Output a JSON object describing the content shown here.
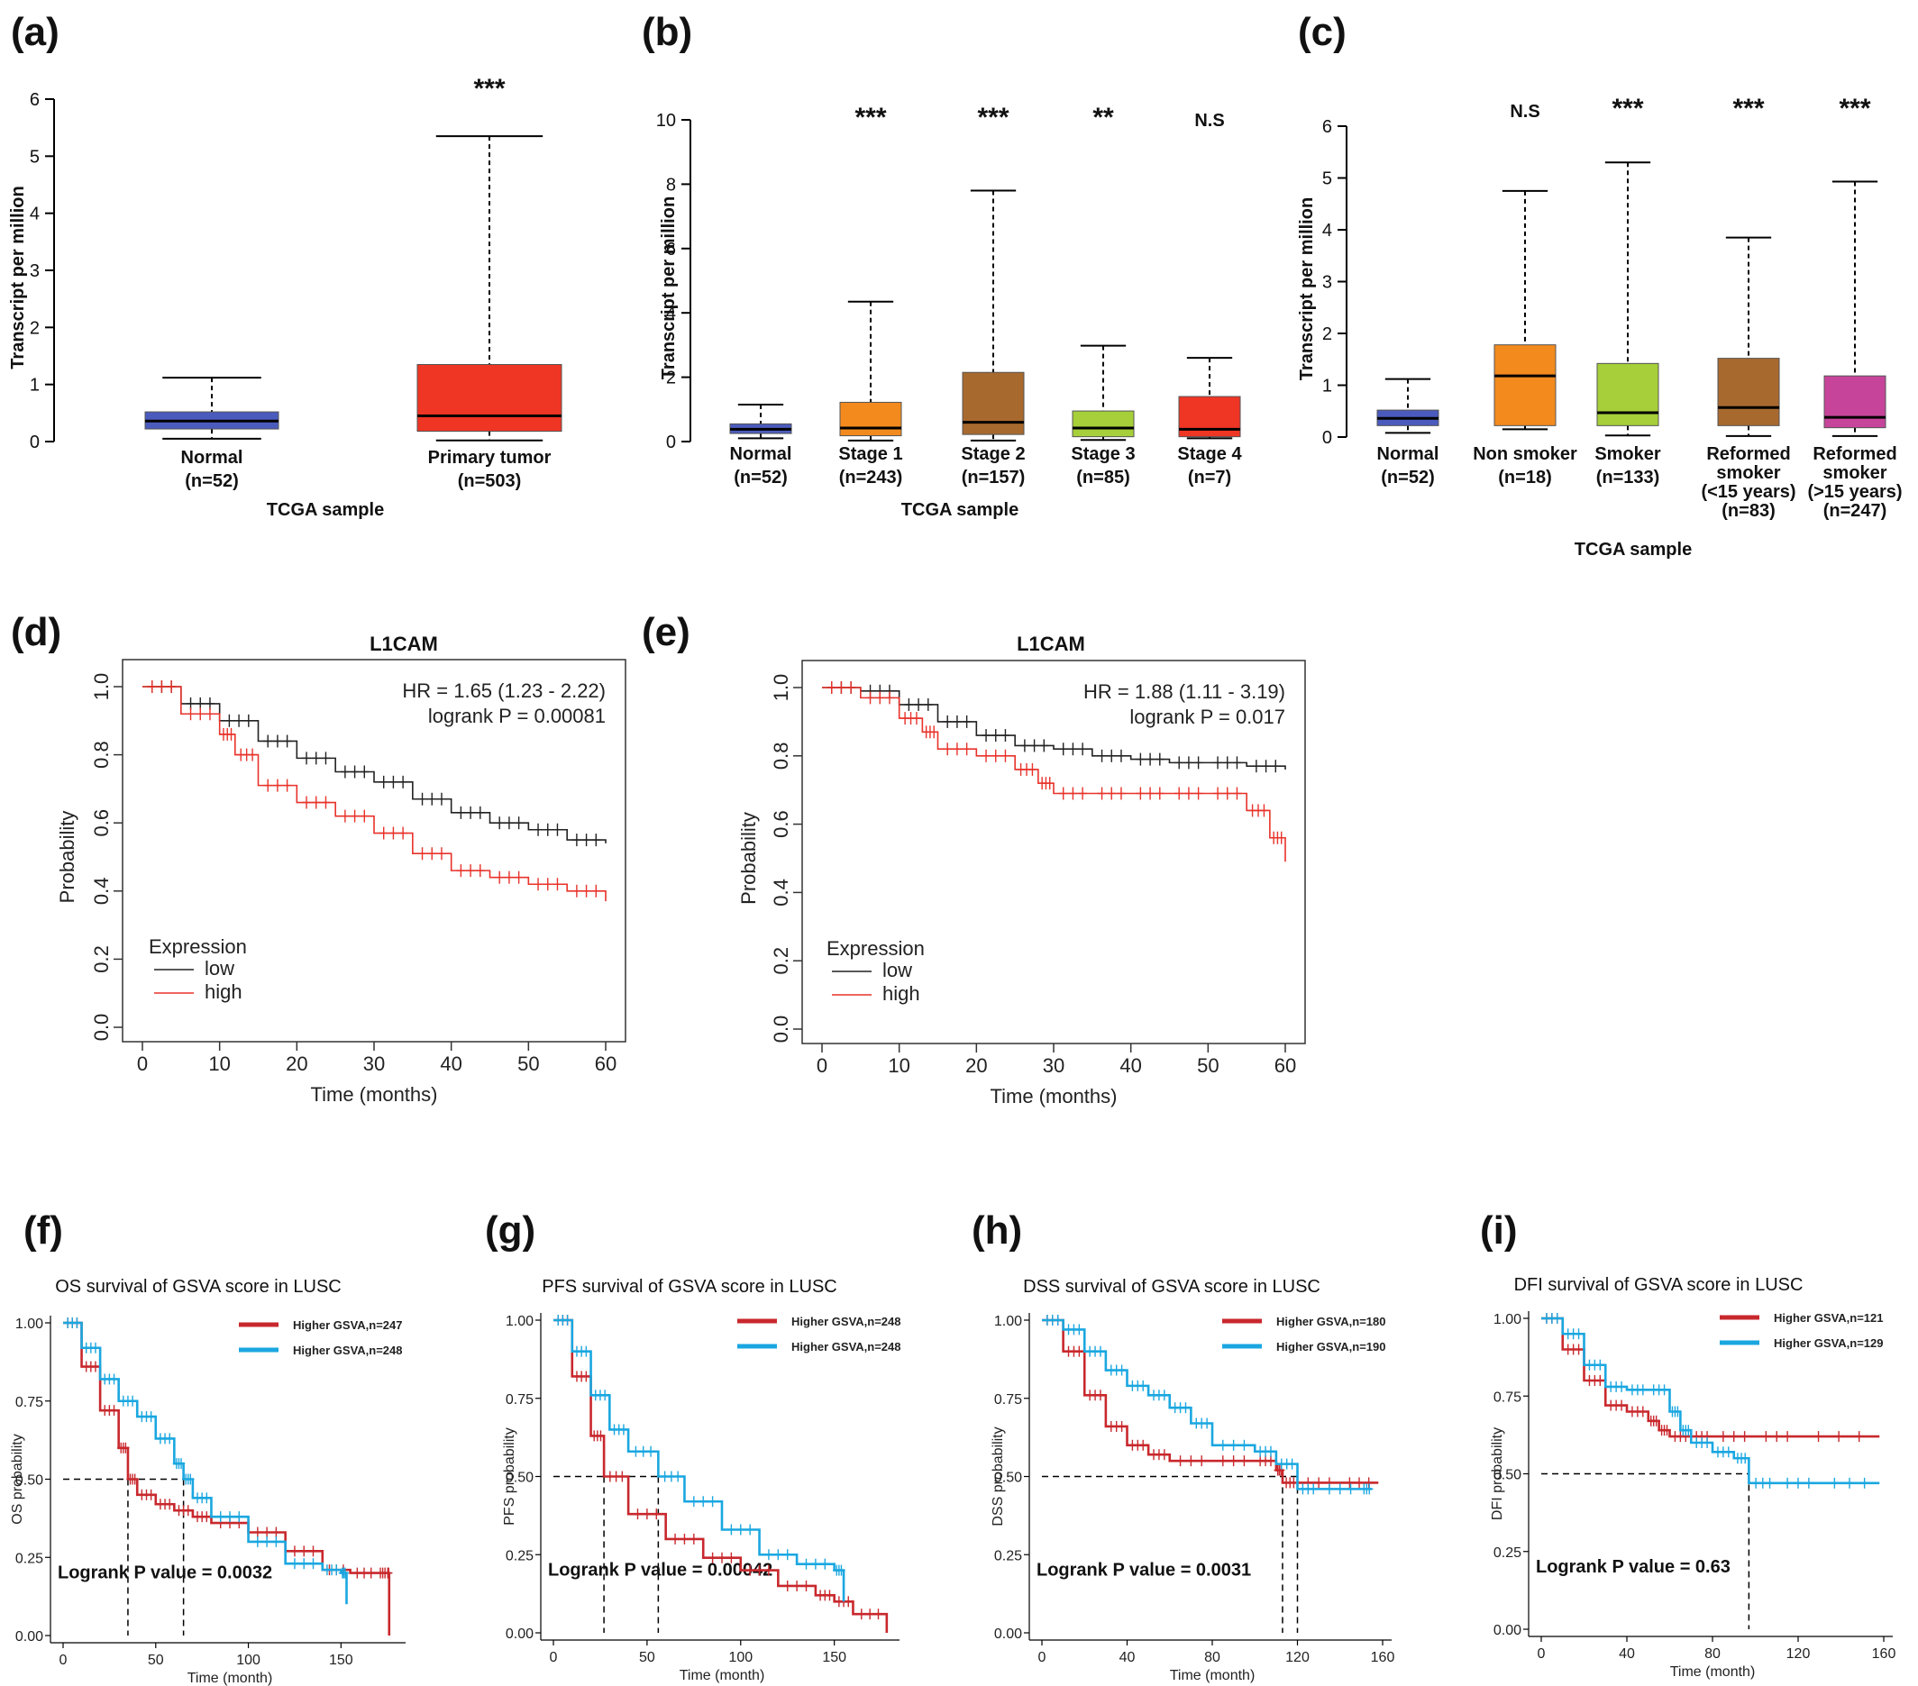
{
  "chart_data": [
    {
      "panel": "(a)",
      "type": "box",
      "ylabel": "Transcript per million",
      "xlabel": "TCGA sample",
      "ylim": [
        0,
        6
      ],
      "yticks": [
        0,
        1,
        2,
        3,
        4,
        5,
        6
      ],
      "grid": false,
      "boxes": [
        {
          "label": "Normal",
          "n": "(n=52)",
          "color": "#4b5bbd",
          "sig": "",
          "min": 0.05,
          "q1": 0.22,
          "median": 0.36,
          "q3": 0.52,
          "max": 1.12
        },
        {
          "label": "Primary tumor",
          "n": "(n=503)",
          "color": "#ef3524",
          "sig": "***",
          "min": 0.02,
          "q1": 0.18,
          "median": 0.45,
          "q3": 1.35,
          "max": 5.35
        }
      ]
    },
    {
      "panel": "(b)",
      "type": "box",
      "ylabel": "Transcript per million",
      "xlabel": "TCGA sample",
      "ylim": [
        0,
        10
      ],
      "yticks": [
        0,
        2,
        4,
        6,
        8,
        10
      ],
      "grid": false,
      "boxes": [
        {
          "label": "Normal",
          "n": "(n=52)",
          "color": "#4b5bbd",
          "sig": "",
          "min": 0.1,
          "q1": 0.25,
          "median": 0.38,
          "q3": 0.55,
          "max": 1.15
        },
        {
          "label": "Stage 1",
          "n": "(n=243)",
          "color": "#f28a1e",
          "sig": "***",
          "min": 0.03,
          "q1": 0.18,
          "median": 0.42,
          "q3": 1.22,
          "max": 4.35
        },
        {
          "label": "Stage 2",
          "n": "(n=157)",
          "color": "#a8692f",
          "sig": "***",
          "min": 0.03,
          "q1": 0.22,
          "median": 0.6,
          "q3": 2.15,
          "max": 7.8
        },
        {
          "label": "Stage 3",
          "n": "(n=85)",
          "color": "#a6cf3a",
          "sig": "**",
          "min": 0.05,
          "q1": 0.15,
          "median": 0.42,
          "q3": 0.95,
          "max": 2.98
        },
        {
          "label": "Stage 4",
          "n": "(n=7)",
          "color": "#ef3524",
          "sig": "N.S",
          "min": 0.1,
          "q1": 0.15,
          "median": 0.38,
          "q3": 1.4,
          "max": 2.6
        }
      ]
    },
    {
      "panel": "(c)",
      "type": "box",
      "ylabel": "Transcript per million",
      "xlabel": "TCGA sample",
      "ylim": [
        0,
        6
      ],
      "yticks": [
        0,
        1,
        2,
        3,
        4,
        5,
        6
      ],
      "grid": false,
      "boxes": [
        {
          "label": "Normal",
          "n": "(n=52)",
          "color": "#4b5bbd",
          "sig": "",
          "min": 0.08,
          "q1": 0.22,
          "median": 0.36,
          "q3": 0.52,
          "max": 1.12
        },
        {
          "label": "Non smoker",
          "n": "(n=18)",
          "color": "#f28a1e",
          "sig": "N.S",
          "min": 0.15,
          "q1": 0.22,
          "median": 1.18,
          "q3": 1.78,
          "max": 4.75
        },
        {
          "label": "Smoker",
          "n": "(n=133)",
          "color": "#a6cf3a",
          "sig": "***",
          "min": 0.03,
          "q1": 0.22,
          "median": 0.47,
          "q3": 1.42,
          "max": 5.3
        },
        {
          "label": "Reformed smoker (<15 years)",
          "n": "(n=83)",
          "color": "#a8692f",
          "sig": "***",
          "min": 0.02,
          "q1": 0.22,
          "median": 0.57,
          "q3": 1.52,
          "max": 3.85
        },
        {
          "label": "Reformed smoker (>15 years)",
          "n": "(n=247)",
          "color": "#c6459a",
          "sig": "***",
          "min": 0.02,
          "q1": 0.18,
          "median": 0.38,
          "q3": 1.18,
          "max": 4.93
        }
      ]
    },
    {
      "panel": "(d)",
      "type": "line",
      "title": "L1CAM",
      "xlabel": "Time (months)",
      "ylabel": "Probability",
      "xlim": [
        0,
        60
      ],
      "ylim": [
        0,
        1
      ],
      "xticks": [
        0,
        10,
        20,
        30,
        40,
        50,
        60
      ],
      "yticks": [
        "0.0",
        "0.2",
        "0.4",
        "0.6",
        "0.8",
        "1.0"
      ],
      "hr_text": "HR = 1.65 (1.23 - 2.22)",
      "p_text": "logrank P = 0.00081",
      "legend_title": "Expression",
      "series": [
        {
          "name": "low",
          "color": "#222222",
          "x": [
            0,
            5,
            10,
            15,
            20,
            25,
            30,
            35,
            40,
            45,
            50,
            55,
            60
          ],
          "y": [
            1.0,
            0.95,
            0.9,
            0.84,
            0.79,
            0.75,
            0.72,
            0.67,
            0.63,
            0.6,
            0.58,
            0.55,
            0.54
          ]
        },
        {
          "name": "high",
          "color": "#e8322a",
          "x": [
            0,
            5,
            10,
            12,
            15,
            20,
            25,
            30,
            35,
            40,
            45,
            50,
            55,
            60
          ],
          "y": [
            1.0,
            0.92,
            0.86,
            0.8,
            0.71,
            0.66,
            0.62,
            0.57,
            0.51,
            0.46,
            0.44,
            0.42,
            0.4,
            0.37
          ]
        }
      ]
    },
    {
      "panel": "(e)",
      "type": "line",
      "title": "L1CAM",
      "xlabel": "Time (months)",
      "ylabel": "Probability",
      "xlim": [
        0,
        60
      ],
      "ylim": [
        0,
        1
      ],
      "xticks": [
        0,
        10,
        20,
        30,
        40,
        50,
        60
      ],
      "yticks": [
        "0.0",
        "0.2",
        "0.4",
        "0.6",
        "0.8",
        "1.0"
      ],
      "hr_text": "HR = 1.88 (1.11 - 3.19)",
      "p_text": "logrank P = 0.017",
      "legend_title": "Expression",
      "series": [
        {
          "name": "low",
          "color": "#222222",
          "x": [
            0,
            5,
            10,
            15,
            20,
            25,
            30,
            35,
            40,
            45,
            50,
            55,
            60
          ],
          "y": [
            1.0,
            0.99,
            0.95,
            0.9,
            0.86,
            0.83,
            0.82,
            0.8,
            0.79,
            0.78,
            0.78,
            0.77,
            0.76
          ]
        },
        {
          "name": "high",
          "color": "#e8322a",
          "x": [
            0,
            5,
            10,
            13,
            15,
            20,
            25,
            28,
            30,
            35,
            40,
            45,
            50,
            55,
            58,
            60
          ],
          "y": [
            1.0,
            0.97,
            0.91,
            0.87,
            0.82,
            0.8,
            0.76,
            0.72,
            0.69,
            0.69,
            0.69,
            0.69,
            0.69,
            0.64,
            0.56,
            0.49
          ]
        }
      ]
    },
    {
      "panel": "(f)",
      "type": "line",
      "title": "OS survival of GSVA score in LUSC",
      "xlabel": "Time (month)",
      "ylabel": "OS probability",
      "xlim": [
        0,
        180
      ],
      "ylim": [
        0,
        1
      ],
      "xticks": [
        0,
        50,
        100,
        150
      ],
      "yticks": [
        "0.00",
        "0.25",
        "0.50",
        "0.75",
        "1.00"
      ],
      "p_text": "Logrank P value = 0.0032",
      "medians": [
        35,
        65
      ],
      "series": [
        {
          "name": "Higher GSVA,n=247",
          "color": "#c8282d",
          "x": [
            0,
            10,
            20,
            30,
            35,
            40,
            50,
            60,
            70,
            80,
            100,
            120,
            140,
            155,
            170,
            175,
            176
          ],
          "y": [
            1.0,
            0.86,
            0.72,
            0.6,
            0.5,
            0.45,
            0.42,
            0.4,
            0.38,
            0.36,
            0.33,
            0.27,
            0.21,
            0.2,
            0.2,
            0.2,
            0.0
          ]
        },
        {
          "name": "Higher GSVA,n=248",
          "color": "#1aa7e0",
          "x": [
            0,
            10,
            20,
            30,
            40,
            50,
            60,
            65,
            70,
            80,
            100,
            120,
            140,
            150,
            153
          ],
          "y": [
            1.0,
            0.92,
            0.82,
            0.75,
            0.7,
            0.63,
            0.55,
            0.5,
            0.44,
            0.38,
            0.3,
            0.23,
            0.21,
            0.2,
            0.1
          ]
        }
      ]
    },
    {
      "panel": "(g)",
      "type": "line",
      "title": "PFS survival of GSVA score in LUSC",
      "xlabel": "Time (month)",
      "ylabel": "PFS probability",
      "xlim": [
        0,
        180
      ],
      "ylim": [
        0,
        1
      ],
      "xticks": [
        0,
        50,
        100,
        150
      ],
      "yticks": [
        "0.00",
        "0.25",
        "0.50",
        "0.75",
        "1.00"
      ],
      "p_text": "Logrank P value = 0.00042",
      "medians": [
        27,
        56
      ],
      "series": [
        {
          "name": "Higher GSVA,n=248",
          "color": "#c8282d",
          "x": [
            0,
            10,
            20,
            27,
            40,
            60,
            80,
            100,
            120,
            140,
            150,
            160,
            178
          ],
          "y": [
            1.0,
            0.82,
            0.63,
            0.5,
            0.38,
            0.3,
            0.24,
            0.2,
            0.15,
            0.12,
            0.1,
            0.06,
            0.0
          ]
        },
        {
          "name": "Higher GSVA,n=248",
          "color": "#1aa7e0",
          "x": [
            0,
            10,
            20,
            30,
            40,
            56,
            70,
            90,
            110,
            130,
            150,
            155
          ],
          "y": [
            1.0,
            0.9,
            0.76,
            0.65,
            0.58,
            0.5,
            0.42,
            0.33,
            0.25,
            0.22,
            0.2,
            0.1
          ]
        }
      ]
    },
    {
      "panel": "(h)",
      "type": "line",
      "title": "DSS survival of GSVA score in LUSC",
      "xlabel": "Time (month)",
      "ylabel": "DSS probability",
      "xlim": [
        0,
        160
      ],
      "ylim": [
        0,
        1
      ],
      "xticks": [
        0,
        40,
        80,
        120,
        160
      ],
      "yticks": [
        "0.00",
        "0.25",
        "0.50",
        "0.75",
        "1.00"
      ],
      "p_text": "Logrank P value = 0.0031",
      "medians": [
        113,
        120
      ],
      "series": [
        {
          "name": "Higher GSVA,n=180",
          "color": "#c8282d",
          "x": [
            0,
            10,
            20,
            30,
            40,
            50,
            60,
            80,
            100,
            110,
            113,
            120,
            140,
            158
          ],
          "y": [
            1.0,
            0.9,
            0.76,
            0.66,
            0.6,
            0.57,
            0.55,
            0.55,
            0.55,
            0.52,
            0.48,
            0.48,
            0.48,
            0.48
          ]
        },
        {
          "name": "Higher GSVA,n=190",
          "color": "#1aa7e0",
          "x": [
            0,
            10,
            20,
            30,
            40,
            50,
            60,
            70,
            80,
            100,
            110,
            120,
            130,
            150,
            155
          ],
          "y": [
            1.0,
            0.97,
            0.9,
            0.84,
            0.79,
            0.76,
            0.72,
            0.67,
            0.6,
            0.58,
            0.54,
            0.46,
            0.46,
            0.46,
            0.46
          ]
        }
      ]
    },
    {
      "panel": "(i)",
      "type": "line",
      "title": "DFI survival of GSVA score in LUSC",
      "xlabel": "Time (month)",
      "ylabel": "DFI probability",
      "xlim": [
        0,
        160
      ],
      "ylim": [
        0,
        1
      ],
      "xticks": [
        0,
        40,
        80,
        120,
        160
      ],
      "yticks": [
        "0.00",
        "0.25",
        "0.50",
        "0.75",
        "1.00"
      ],
      "p_text": "Logrank P value = 0.63",
      "medians": [
        97
      ],
      "series": [
        {
          "name": "Higher GSVA,n=121",
          "color": "#c8282d",
          "x": [
            0,
            10,
            20,
            30,
            40,
            50,
            55,
            60,
            70,
            80,
            100,
            120,
            158
          ],
          "y": [
            1.0,
            0.9,
            0.8,
            0.72,
            0.7,
            0.67,
            0.64,
            0.62,
            0.62,
            0.62,
            0.62,
            0.62,
            0.62
          ]
        },
        {
          "name": "Higher GSVA,n=129",
          "color": "#1aa7e0",
          "x": [
            0,
            10,
            20,
            30,
            40,
            50,
            60,
            65,
            70,
            80,
            90,
            97,
            110,
            130,
            158
          ],
          "y": [
            1.0,
            0.95,
            0.85,
            0.78,
            0.77,
            0.77,
            0.7,
            0.64,
            0.6,
            0.57,
            0.55,
            0.47,
            0.47,
            0.47,
            0.47
          ]
        }
      ]
    }
  ]
}
